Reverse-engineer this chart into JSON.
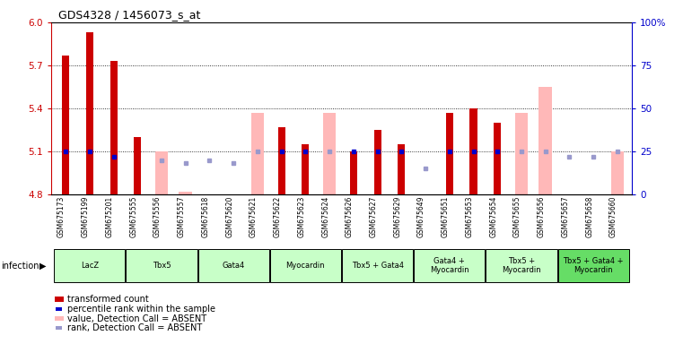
{
  "title": "GDS4328 / 1456073_s_at",
  "samples": [
    "GSM675173",
    "GSM675199",
    "GSM675201",
    "GSM675555",
    "GSM675556",
    "GSM675557",
    "GSM675618",
    "GSM675620",
    "GSM675621",
    "GSM675622",
    "GSM675623",
    "GSM675624",
    "GSM675626",
    "GSM675627",
    "GSM675629",
    "GSM675649",
    "GSM675651",
    "GSM675653",
    "GSM675654",
    "GSM675655",
    "GSM675656",
    "GSM675657",
    "GSM675658",
    "GSM675660"
  ],
  "red_values": [
    5.77,
    5.93,
    5.73,
    5.2,
    null,
    null,
    null,
    null,
    null,
    5.27,
    5.15,
    null,
    5.1,
    5.25,
    5.15,
    null,
    5.37,
    5.4,
    5.3,
    null,
    null,
    null,
    null,
    null
  ],
  "pink_values": [
    null,
    null,
    null,
    null,
    5.1,
    4.82,
    null,
    null,
    5.37,
    null,
    null,
    5.37,
    null,
    null,
    null,
    null,
    null,
    null,
    null,
    5.37,
    5.55,
    null,
    null,
    5.1
  ],
  "blue_values": [
    25,
    25,
    22,
    null,
    null,
    null,
    null,
    null,
    null,
    25,
    25,
    null,
    25,
    25,
    25,
    null,
    25,
    25,
    25,
    null,
    null,
    null,
    null,
    null
  ],
  "lightblue_values": [
    null,
    null,
    null,
    null,
    20,
    18,
    20,
    18,
    25,
    null,
    null,
    25,
    null,
    null,
    null,
    15,
    null,
    null,
    null,
    25,
    25,
    22,
    22,
    25
  ],
  "groups": [
    {
      "label": "LacZ",
      "start": 0,
      "end": 2,
      "color": "#c8ffc8"
    },
    {
      "label": "Tbx5",
      "start": 3,
      "end": 5,
      "color": "#c8ffc8"
    },
    {
      "label": "Gata4",
      "start": 6,
      "end": 8,
      "color": "#c8ffc8"
    },
    {
      "label": "Myocardin",
      "start": 9,
      "end": 11,
      "color": "#c8ffc8"
    },
    {
      "label": "Tbx5 + Gata4",
      "start": 12,
      "end": 14,
      "color": "#c8ffc8"
    },
    {
      "label": "Gata4 +\nMyocardin",
      "start": 15,
      "end": 17,
      "color": "#c8ffc8"
    },
    {
      "label": "Tbx5 +\nMyocardin",
      "start": 18,
      "end": 20,
      "color": "#c8ffc8"
    },
    {
      "label": "Tbx5 + Gata4 +\nMyocardin",
      "start": 21,
      "end": 23,
      "color": "#66dd66"
    }
  ],
  "ylim_left": [
    4.8,
    6.0
  ],
  "ylim_right": [
    0,
    100
  ],
  "yticks_left": [
    4.8,
    5.1,
    5.4,
    5.7,
    6.0
  ],
  "yticks_right": [
    0,
    25,
    50,
    75,
    100
  ],
  "ytick_labels_right": [
    "0",
    "25",
    "50",
    "75",
    "100%"
  ],
  "red_color": "#cc0000",
  "pink_color": "#ffb8b8",
  "blue_color": "#0000cc",
  "lightblue_color": "#9999cc",
  "bar_width": 0.55,
  "bg_gray": "#c8c8c8",
  "group_light_green": "#c8ffc8",
  "group_dark_green": "#66dd66"
}
